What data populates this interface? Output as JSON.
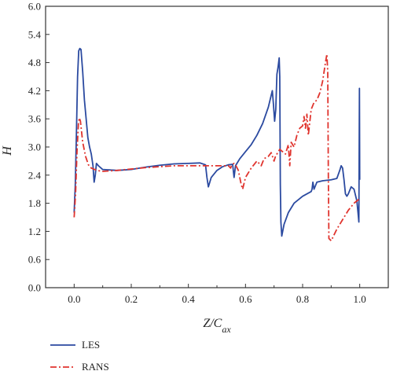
{
  "chart_data": {
    "type": "line",
    "title": "",
    "xlabel": "Z/C_ax",
    "ylabel": "H",
    "xlim": [
      -0.1,
      1.1
    ],
    "ylim": [
      0.0,
      6.0
    ],
    "x_ticks": [
      "0.0",
      "0.2",
      "0.4",
      "0.6",
      "0.8",
      "1.0"
    ],
    "x_tick_values": [
      0.0,
      0.2,
      0.4,
      0.6,
      0.8,
      1.0
    ],
    "y_ticks": [
      "0.0",
      "0.6",
      "1.2",
      "1.8",
      "2.4",
      "3.0",
      "3.6",
      "4.2",
      "4.8",
      "5.4",
      "6.0"
    ],
    "y_tick_values": [
      0.0,
      0.6,
      1.2,
      1.8,
      2.4,
      3.0,
      3.6,
      4.2,
      4.8,
      5.4,
      6.0
    ],
    "grid": false,
    "legend_position": "bottom-left",
    "series": [
      {
        "name": "LES",
        "color": "#2b4aa0",
        "dash": "solid",
        "points": [
          [
            0.0,
            1.6
          ],
          [
            0.004,
            2.2
          ],
          [
            0.008,
            3.3
          ],
          [
            0.012,
            4.5
          ],
          [
            0.016,
            5.05
          ],
          [
            0.02,
            5.1
          ],
          [
            0.024,
            5.08
          ],
          [
            0.03,
            4.6
          ],
          [
            0.036,
            4.0
          ],
          [
            0.042,
            3.6
          ],
          [
            0.048,
            3.2
          ],
          [
            0.054,
            3.0
          ],
          [
            0.06,
            2.85
          ],
          [
            0.066,
            2.6
          ],
          [
            0.07,
            2.25
          ],
          [
            0.074,
            2.4
          ],
          [
            0.078,
            2.65
          ],
          [
            0.085,
            2.6
          ],
          [
            0.1,
            2.52
          ],
          [
            0.15,
            2.5
          ],
          [
            0.2,
            2.52
          ],
          [
            0.25,
            2.57
          ],
          [
            0.3,
            2.61
          ],
          [
            0.35,
            2.64
          ],
          [
            0.4,
            2.65
          ],
          [
            0.44,
            2.66
          ],
          [
            0.46,
            2.62
          ],
          [
            0.465,
            2.35
          ],
          [
            0.47,
            2.15
          ],
          [
            0.48,
            2.35
          ],
          [
            0.5,
            2.5
          ],
          [
            0.52,
            2.58
          ],
          [
            0.54,
            2.62
          ],
          [
            0.555,
            2.63
          ],
          [
            0.56,
            2.35
          ],
          [
            0.565,
            2.6
          ],
          [
            0.58,
            2.75
          ],
          [
            0.6,
            2.9
          ],
          [
            0.62,
            3.05
          ],
          [
            0.64,
            3.25
          ],
          [
            0.66,
            3.5
          ],
          [
            0.68,
            3.85
          ],
          [
            0.69,
            4.1
          ],
          [
            0.694,
            4.2
          ],
          [
            0.698,
            3.9
          ],
          [
            0.702,
            3.55
          ],
          [
            0.706,
            3.8
          ],
          [
            0.71,
            4.55
          ],
          [
            0.714,
            4.7
          ],
          [
            0.718,
            4.9
          ],
          [
            0.72,
            4.5
          ],
          [
            0.722,
            2.2
          ],
          [
            0.724,
            1.4
          ],
          [
            0.727,
            1.1
          ],
          [
            0.735,
            1.35
          ],
          [
            0.75,
            1.6
          ],
          [
            0.77,
            1.8
          ],
          [
            0.8,
            1.95
          ],
          [
            0.83,
            2.05
          ],
          [
            0.833,
            2.1
          ],
          [
            0.836,
            2.25
          ],
          [
            0.84,
            2.1
          ],
          [
            0.85,
            2.25
          ],
          [
            0.87,
            2.28
          ],
          [
            0.9,
            2.3
          ],
          [
            0.92,
            2.33
          ],
          [
            0.93,
            2.5
          ],
          [
            0.935,
            2.6
          ],
          [
            0.94,
            2.55
          ],
          [
            0.945,
            2.3
          ],
          [
            0.95,
            2.0
          ],
          [
            0.955,
            1.95
          ],
          [
            0.96,
            2.0
          ],
          [
            0.97,
            2.15
          ],
          [
            0.98,
            2.1
          ],
          [
            0.99,
            1.85
          ],
          [
            0.994,
            1.6
          ],
          [
            0.997,
            1.4
          ],
          [
            0.999,
            4.25
          ],
          [
            1.0,
            2.3
          ]
        ]
      },
      {
        "name": "RANS",
        "color": "#e0342e",
        "dash": "dashdot",
        "points": [
          [
            0.0,
            1.5
          ],
          [
            0.005,
            2.0
          ],
          [
            0.01,
            2.9
          ],
          [
            0.015,
            3.5
          ],
          [
            0.018,
            3.62
          ],
          [
            0.022,
            3.55
          ],
          [
            0.03,
            3.1
          ],
          [
            0.04,
            2.8
          ],
          [
            0.05,
            2.62
          ],
          [
            0.06,
            2.55
          ],
          [
            0.08,
            2.5
          ],
          [
            0.1,
            2.48
          ],
          [
            0.15,
            2.5
          ],
          [
            0.2,
            2.53
          ],
          [
            0.25,
            2.56
          ],
          [
            0.3,
            2.58
          ],
          [
            0.35,
            2.6
          ],
          [
            0.4,
            2.6
          ],
          [
            0.45,
            2.6
          ],
          [
            0.5,
            2.6
          ],
          [
            0.54,
            2.6
          ],
          [
            0.548,
            2.55
          ],
          [
            0.552,
            2.62
          ],
          [
            0.56,
            2.65
          ],
          [
            0.565,
            2.62
          ],
          [
            0.575,
            2.5
          ],
          [
            0.585,
            2.2
          ],
          [
            0.59,
            2.1
          ],
          [
            0.6,
            2.35
          ],
          [
            0.62,
            2.55
          ],
          [
            0.64,
            2.7
          ],
          [
            0.655,
            2.6
          ],
          [
            0.665,
            2.75
          ],
          [
            0.68,
            2.8
          ],
          [
            0.69,
            2.88
          ],
          [
            0.7,
            2.7
          ],
          [
            0.705,
            2.8
          ],
          [
            0.72,
            2.95
          ],
          [
            0.74,
            2.85
          ],
          [
            0.75,
            3.05
          ],
          [
            0.755,
            2.6
          ],
          [
            0.76,
            3.1
          ],
          [
            0.77,
            3.0
          ],
          [
            0.78,
            3.25
          ],
          [
            0.79,
            3.4
          ],
          [
            0.8,
            3.45
          ],
          [
            0.805,
            3.65
          ],
          [
            0.81,
            3.4
          ],
          [
            0.815,
            3.7
          ],
          [
            0.82,
            3.25
          ],
          [
            0.83,
            3.8
          ],
          [
            0.84,
            3.95
          ],
          [
            0.85,
            4.0
          ],
          [
            0.86,
            4.15
          ],
          [
            0.87,
            4.4
          ],
          [
            0.88,
            4.8
          ],
          [
            0.885,
            4.98
          ],
          [
            0.888,
            4.6
          ],
          [
            0.89,
            2.5
          ],
          [
            0.892,
            1.05
          ],
          [
            0.9,
            1.0
          ],
          [
            0.92,
            1.25
          ],
          [
            0.94,
            1.45
          ],
          [
            0.96,
            1.65
          ],
          [
            0.98,
            1.8
          ],
          [
            0.99,
            1.85
          ],
          [
            1.0,
            1.9
          ]
        ]
      }
    ]
  }
}
